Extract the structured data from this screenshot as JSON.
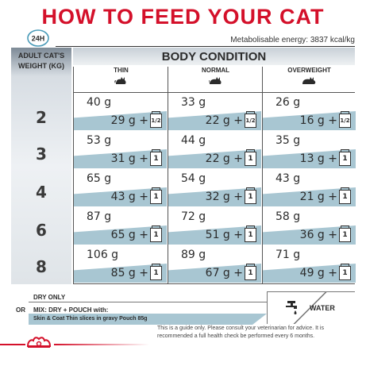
{
  "title": "HOW TO FEED YOUR CAT",
  "clock_label": "24H",
  "energy": "Metabolisable energy: 3837 kcal/kg",
  "side_label": "ADULT CAT'S WEIGHT (KG)",
  "body_condition": "BODY CONDITION",
  "columns": [
    "THIN",
    "NORMAL",
    "OVERWEIGHT"
  ],
  "weights": [
    "2",
    "3",
    "4",
    "6",
    "8"
  ],
  "rows": [
    [
      {
        "dry": "40 g",
        "mix": "29 g  +",
        "pouch": "1/2"
      },
      {
        "dry": "33 g",
        "mix": "22 g  +",
        "pouch": "1/2"
      },
      {
        "dry": "26 g",
        "mix": "16 g  +",
        "pouch": "1/2"
      }
    ],
    [
      {
        "dry": "53 g",
        "mix": "31 g  +",
        "pouch": "1"
      },
      {
        "dry": "44 g",
        "mix": "22 g  +",
        "pouch": "1"
      },
      {
        "dry": "35 g",
        "mix": "13 g  +",
        "pouch": "1"
      }
    ],
    [
      {
        "dry": "65 g",
        "mix": "43 g  +",
        "pouch": "1"
      },
      {
        "dry": "54 g",
        "mix": "32 g  +",
        "pouch": "1"
      },
      {
        "dry": "43 g",
        "mix": "21 g  +",
        "pouch": "1"
      }
    ],
    [
      {
        "dry": "87 g",
        "mix": "65 g  +",
        "pouch": "1"
      },
      {
        "dry": "72 g",
        "mix": "51 g  +",
        "pouch": "1"
      },
      {
        "dry": "58 g",
        "mix": "36 g  +",
        "pouch": "1"
      }
    ],
    [
      {
        "dry": "106 g",
        "mix": "85 g  +",
        "pouch": "1"
      },
      {
        "dry": "89 g",
        "mix": "67 g  +",
        "pouch": "1"
      },
      {
        "dry": "71 g",
        "mix": "49 g  +",
        "pouch": "1"
      }
    ]
  ],
  "legend": {
    "dry_only": "DRY ONLY",
    "or": "OR",
    "mix": "MIX: DRY + POUCH with:",
    "product": "Skin & Coat Thin slices in gravy Pouch 85g",
    "water": "WATER"
  },
  "note": "This is a guide only. Please consult your veterinarian for advice. It is recommended a full health check be performed every 6 months.",
  "colors": {
    "title": "#d4102a",
    "band": "#a8c6d2"
  },
  "icons": {
    "clock": "clock-24h-icon",
    "cat": "cat-icon",
    "pouch": "pouch-icon",
    "tap": "water-tap-icon",
    "logo": "royal-canin-crown-logo"
  }
}
